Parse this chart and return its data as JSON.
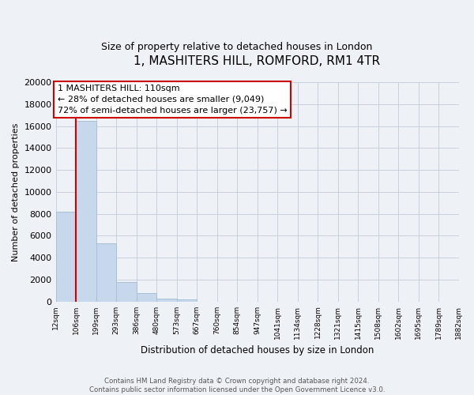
{
  "title": "1, MASHITERS HILL, ROMFORD, RM1 4TR",
  "subtitle": "Size of property relative to detached houses in London",
  "xlabel": "Distribution of detached houses by size in London",
  "ylabel": "Number of detached properties",
  "bar_color": "#c8d8ec",
  "bar_edge_color": "#a8c0d8",
  "bin_labels": [
    "12sqm",
    "106sqm",
    "199sqm",
    "293sqm",
    "386sqm",
    "480sqm",
    "573sqm",
    "667sqm",
    "760sqm",
    "854sqm",
    "947sqm",
    "1041sqm",
    "1134sqm",
    "1228sqm",
    "1321sqm",
    "1415sqm",
    "1508sqm",
    "1602sqm",
    "1695sqm",
    "1789sqm",
    "1882sqm"
  ],
  "bar_values": [
    8200,
    16500,
    5300,
    1750,
    750,
    250,
    180,
    0,
    0,
    0,
    0,
    0,
    0,
    0,
    0,
    0,
    0,
    0,
    0,
    0
  ],
  "ylim": [
    0,
    20000
  ],
  "yticks": [
    0,
    2000,
    4000,
    6000,
    8000,
    10000,
    12000,
    14000,
    16000,
    18000,
    20000
  ],
  "property_line_x_label": "106sqm",
  "property_line_label": "1 MASHITERS HILL: 110sqm",
  "annotation_line1": "← 28% of detached houses are smaller (9,049)",
  "annotation_line2": "72% of semi-detached houses are larger (23,757) →",
  "box_color": "white",
  "box_edge_color": "#cc0000",
  "property_line_color": "#cc0000",
  "footer_line1": "Contains HM Land Registry data © Crown copyright and database right 2024.",
  "footer_line2": "Contains public sector information licensed under the Open Government Licence v3.0.",
  "background_color": "#eef2f7",
  "plot_background": "#eef2f7",
  "grid_color": "#c8d0dc"
}
